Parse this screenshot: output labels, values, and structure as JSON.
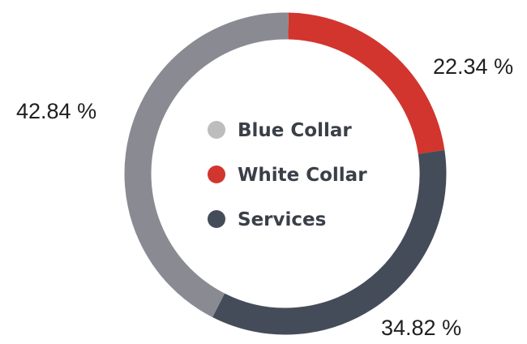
{
  "chart_data": {
    "type": "pie",
    "variant": "donut",
    "categories": [
      "White Collar",
      "Services",
      "Blue Collar"
    ],
    "values": [
      22.34,
      34.82,
      42.84
    ],
    "labels": [
      "22.34 %",
      "34.82 %",
      "42.84 %"
    ],
    "colors": [
      "#d2352e",
      "#454c59",
      "#8a8a93"
    ],
    "legend": {
      "placement": "center",
      "items": [
        {
          "label": "Blue Collar",
          "color": "#bdbdbd"
        },
        {
          "label": "White Collar",
          "color": "#d2352e"
        },
        {
          "label": "Services",
          "color": "#454c59"
        }
      ]
    },
    "title": ""
  }
}
